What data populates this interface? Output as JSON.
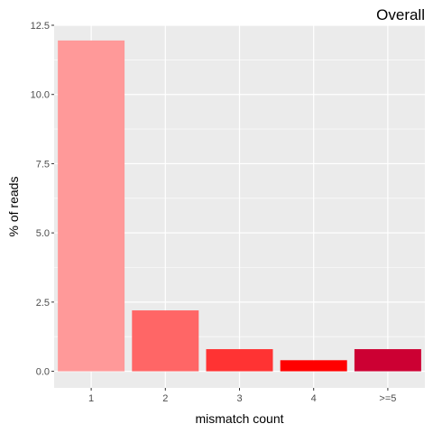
{
  "chart_data": {
    "type": "bar",
    "title": "Overall",
    "xlabel": "mismatch count",
    "ylabel": "% of reads",
    "categories": [
      "1",
      "2",
      "3",
      "4",
      ">=5"
    ],
    "values": [
      11.95,
      2.2,
      0.8,
      0.4,
      0.8
    ],
    "colors": [
      "#FF9999",
      "#FF6666",
      "#FF3333",
      "#FF0000",
      "#CC0033"
    ],
    "ylim": [
      -0.6,
      12.5
    ],
    "yticks": [
      0.0,
      2.5,
      5.0,
      7.5,
      10.0,
      12.5
    ],
    "ytick_labels": [
      "0.0",
      "2.5",
      "5.0",
      "7.5",
      "10.0",
      "12.5"
    ],
    "grid": true,
    "panel_background": "#EBEBEB",
    "grid_color": "#FFFFFF"
  }
}
